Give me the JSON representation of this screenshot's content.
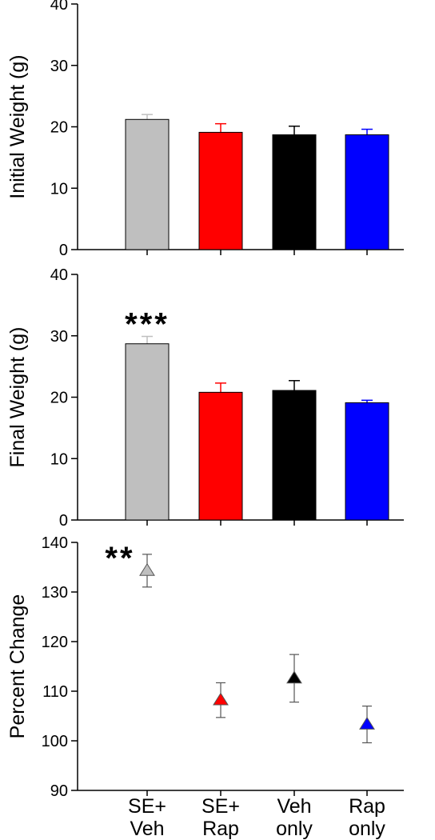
{
  "chart_data": [
    {
      "type": "bar",
      "ylabel": "Initial Weight (g)",
      "ylim": [
        0,
        40
      ],
      "yticks": [
        0,
        10,
        20,
        30,
        40
      ],
      "categories": [
        "SE+ Veh",
        "SE+ Rap",
        "Veh only",
        "Rap only"
      ],
      "values": [
        21.2,
        19.1,
        18.7,
        18.7
      ],
      "errors": [
        0.8,
        1.4,
        1.4,
        0.9
      ],
      "colors": [
        "#bfbfbf",
        "#ff0000",
        "#000000",
        "#0000ff"
      ],
      "annotations": []
    },
    {
      "type": "bar",
      "ylabel": "Final Weight (g)",
      "ylim": [
        0,
        40
      ],
      "yticks": [
        0,
        10,
        20,
        30,
        40
      ],
      "categories": [
        "SE+ Veh",
        "SE+ Rap",
        "Veh only",
        "Rap only"
      ],
      "values": [
        28.7,
        20.8,
        21.1,
        19.1
      ],
      "errors": [
        1.2,
        1.5,
        1.6,
        0.4
      ],
      "colors": [
        "#bfbfbf",
        "#ff0000",
        "#000000",
        "#0000ff"
      ],
      "annotations": [
        {
          "category": 0,
          "text": "***"
        }
      ]
    },
    {
      "type": "scatter",
      "ylabel": "Percent Change",
      "ylim": [
        90,
        140
      ],
      "yticks": [
        90,
        100,
        110,
        120,
        130,
        140
      ],
      "categories": [
        "SE+ Veh",
        "SE+ Rap",
        "Veh only",
        "Rap only"
      ],
      "values": [
        134.3,
        108.2,
        112.6,
        103.3
      ],
      "errors": [
        3.3,
        3.5,
        4.8,
        3.7
      ],
      "colors": [
        "#bfbfbf",
        "#ff0000",
        "#000000",
        "#0000ff"
      ],
      "annotations": [
        {
          "category": 0,
          "text": "**"
        }
      ]
    }
  ],
  "x_axis": {
    "labels": [
      [
        "SE+",
        "Veh"
      ],
      [
        "SE+",
        "Rap"
      ],
      [
        "Veh",
        "only"
      ],
      [
        "Rap",
        "only"
      ]
    ]
  }
}
